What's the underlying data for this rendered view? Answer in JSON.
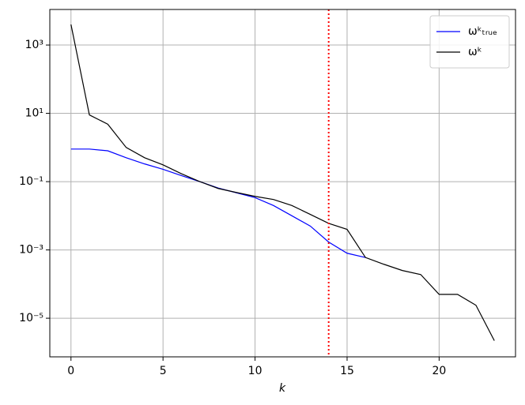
{
  "chart_data": {
    "type": "line",
    "x_label": "k",
    "x": [
      0,
      1,
      2,
      3,
      4,
      5,
      6,
      7,
      8,
      9,
      10,
      11,
      12,
      13,
      14,
      15,
      16,
      17,
      18,
      19,
      20,
      21,
      22,
      23
    ],
    "series": [
      {
        "name": "ωᵏₜᵣᵤₑ",
        "color": "#0000ff",
        "values": [
          0.9,
          0.9,
          0.8,
          0.5,
          0.33,
          0.23,
          0.15,
          0.1,
          0.065,
          0.047,
          0.034,
          0.02,
          0.01,
          0.005,
          0.0017,
          0.0008,
          0.0006,
          null,
          null,
          null,
          null,
          null,
          null,
          null
        ]
      },
      {
        "name": "ωᵏ",
        "color": "#000000",
        "values": [
          4000,
          9,
          4.8,
          1.0,
          0.5,
          0.31,
          0.17,
          0.1,
          0.063,
          0.048,
          0.037,
          0.03,
          0.02,
          0.011,
          0.006,
          0.004,
          0.0006,
          0.00038,
          0.00025,
          0.00019,
          5e-05,
          5e-05,
          2.4e-05,
          2.2e-06
        ]
      }
    ],
    "vline": {
      "x": 14,
      "color": "#ff0000"
    },
    "xlim": [
      -1.15,
      24.15
    ],
    "xticks": [
      0,
      5,
      10,
      15,
      20
    ],
    "ylim": [
      7.4e-07,
      11000
    ],
    "yscale": "log",
    "yticks": [
      {
        "value": 1000,
        "label": "10³"
      },
      {
        "value": 10,
        "label": "10¹"
      },
      {
        "value": 0.1,
        "label": "10⁻¹"
      },
      {
        "value": 0.001,
        "label": "10⁻³"
      },
      {
        "value": 1e-05,
        "label": "10⁻⁵"
      }
    ],
    "grid": true,
    "legend": "upper right"
  }
}
